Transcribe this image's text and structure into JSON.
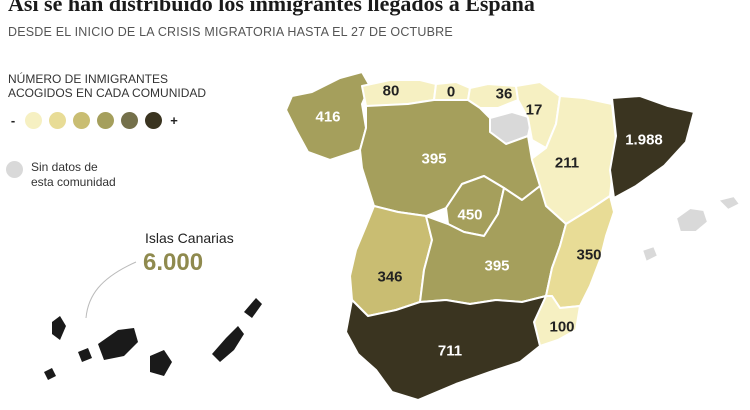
{
  "title": "Así se han distribuido los inmigrantes llegados a España",
  "subtitle": "DESDE EL INICIO DE LA CRISIS MIGRATORIA HASTA EL 27 DE OCTUBRE",
  "legend": {
    "title_line1": "NÚMERO DE INMIGRANTES",
    "title_line2": "ACOGIDOS EN CADA COMUNIDAD",
    "minus": "-",
    "plus": "+",
    "colors": [
      "#f6f0c2",
      "#e8dc96",
      "#c9bd72",
      "#a59f5c",
      "#74704a",
      "#3a3420"
    ]
  },
  "no_data": {
    "line1": "Sin datos de",
    "line2": "esta comunidad",
    "color": "#d9d9d9"
  },
  "canarias": {
    "label": "Islas Canarias",
    "value": "6.000"
  },
  "values": {
    "galicia": "416",
    "asturias": "80",
    "cantabria": "0",
    "pais_vasco": "36",
    "navarra": "17",
    "aragon": "211",
    "cataluna": "1.988",
    "castilla_leon": "395",
    "madrid": "450",
    "castilla_la_mancha": "395",
    "extremadura": "346",
    "valencia": "350",
    "murcia": "100",
    "andalucia": "711"
  }
}
